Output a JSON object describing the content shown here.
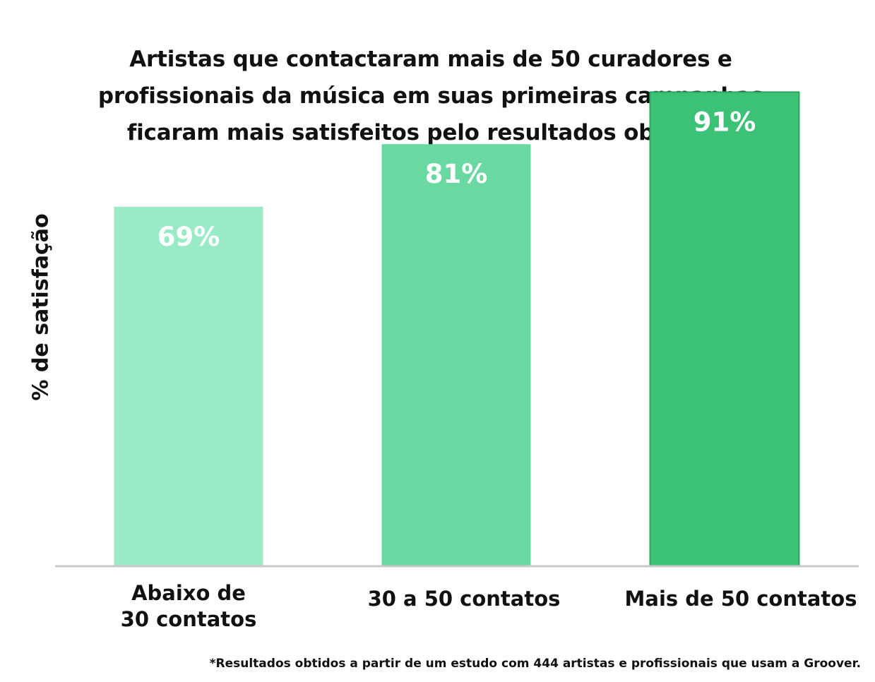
{
  "chart_data": {
    "type": "bar",
    "title_lines": [
      "Artistas que contactaram mais de 50 curadores e",
      "profissionais da música em suas primeiras campanhas",
      "ficaram mais satisfeitos pelo resultados obtidos.*"
    ],
    "ylabel": "% de satisfação",
    "xlabel": "",
    "categories": [
      "Abaixo de 30 contatos",
      "30 a 50 contatos",
      "Mais de 50 contatos"
    ],
    "values": [
      69,
      81,
      91
    ],
    "value_labels": [
      "69%",
      "81%",
      "91%"
    ],
    "ylim": [
      0,
      100
    ],
    "bar_colors": [
      "#98ebc4",
      "#6ad9a1",
      "#3cc277"
    ],
    "grid": false,
    "legend": "none",
    "footnote": "*Resultados obtidos a partir de um estudo com 444 artistas e profissionais que usam a Groover."
  }
}
